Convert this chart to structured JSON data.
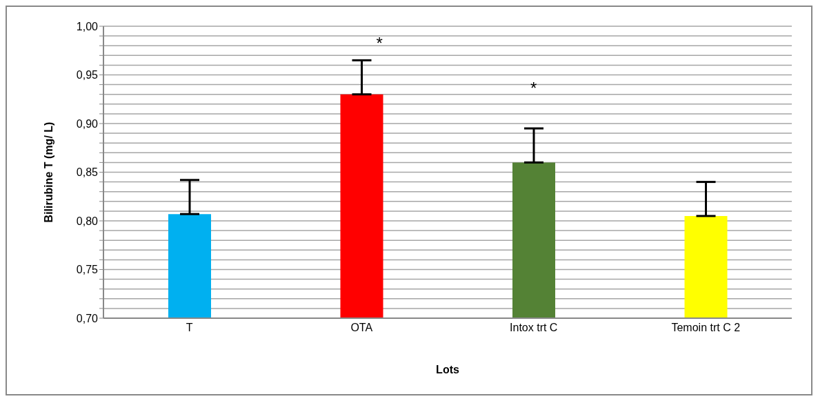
{
  "chart_data": {
    "type": "bar",
    "xlabel": "Lots",
    "ylabel": "Bilirubine T (mg/ L)",
    "categories": [
      "T",
      "OTA",
      "Intox trt C",
      "Temoin trt C 2"
    ],
    "values": [
      0.807,
      0.93,
      0.86,
      0.805
    ],
    "colors": [
      "#00b0f0",
      "#ff0000",
      "#548235",
      "#ffff00"
    ],
    "errors": [
      [
        0.807,
        0.842
      ],
      [
        0.93,
        0.965
      ],
      [
        0.86,
        0.895
      ],
      [
        0.805,
        0.84
      ]
    ],
    "ylim": [
      0.7,
      1.0
    ],
    "yticks": [
      {
        "value": 0.7,
        "label": "0,70"
      },
      {
        "value": 0.71,
        "label": null
      },
      {
        "value": 0.72,
        "label": null
      },
      {
        "value": 0.73,
        "label": null
      },
      {
        "value": 0.74,
        "label": null
      },
      {
        "value": 0.75,
        "label": "0,75"
      },
      {
        "value": 0.76,
        "label": null
      },
      {
        "value": 0.77,
        "label": null
      },
      {
        "value": 0.78,
        "label": null
      },
      {
        "value": 0.79,
        "label": null
      },
      {
        "value": 0.8,
        "label": "0,80"
      },
      {
        "value": 0.81,
        "label": null
      },
      {
        "value": 0.82,
        "label": null
      },
      {
        "value": 0.83,
        "label": null
      },
      {
        "value": 0.84,
        "label": null
      },
      {
        "value": 0.85,
        "label": "0,85"
      },
      {
        "value": 0.86,
        "label": null
      },
      {
        "value": 0.87,
        "label": null
      },
      {
        "value": 0.88,
        "label": null
      },
      {
        "value": 0.89,
        "label": null
      },
      {
        "value": 0.9,
        "label": "0,90"
      },
      {
        "value": 0.91,
        "label": null
      },
      {
        "value": 0.92,
        "label": null
      },
      {
        "value": 0.93,
        "label": null
      },
      {
        "value": 0.94,
        "label": null
      },
      {
        "value": 0.95,
        "label": "0,95"
      },
      {
        "value": 0.96,
        "label": null
      },
      {
        "value": 0.97,
        "label": null
      },
      {
        "value": 0.98,
        "label": null
      },
      {
        "value": 0.99,
        "label": null
      },
      {
        "value": 1.0,
        "label": "1,00"
      }
    ],
    "grid": "y",
    "legend": false,
    "annotations": [
      "*",
      "*"
    ]
  }
}
